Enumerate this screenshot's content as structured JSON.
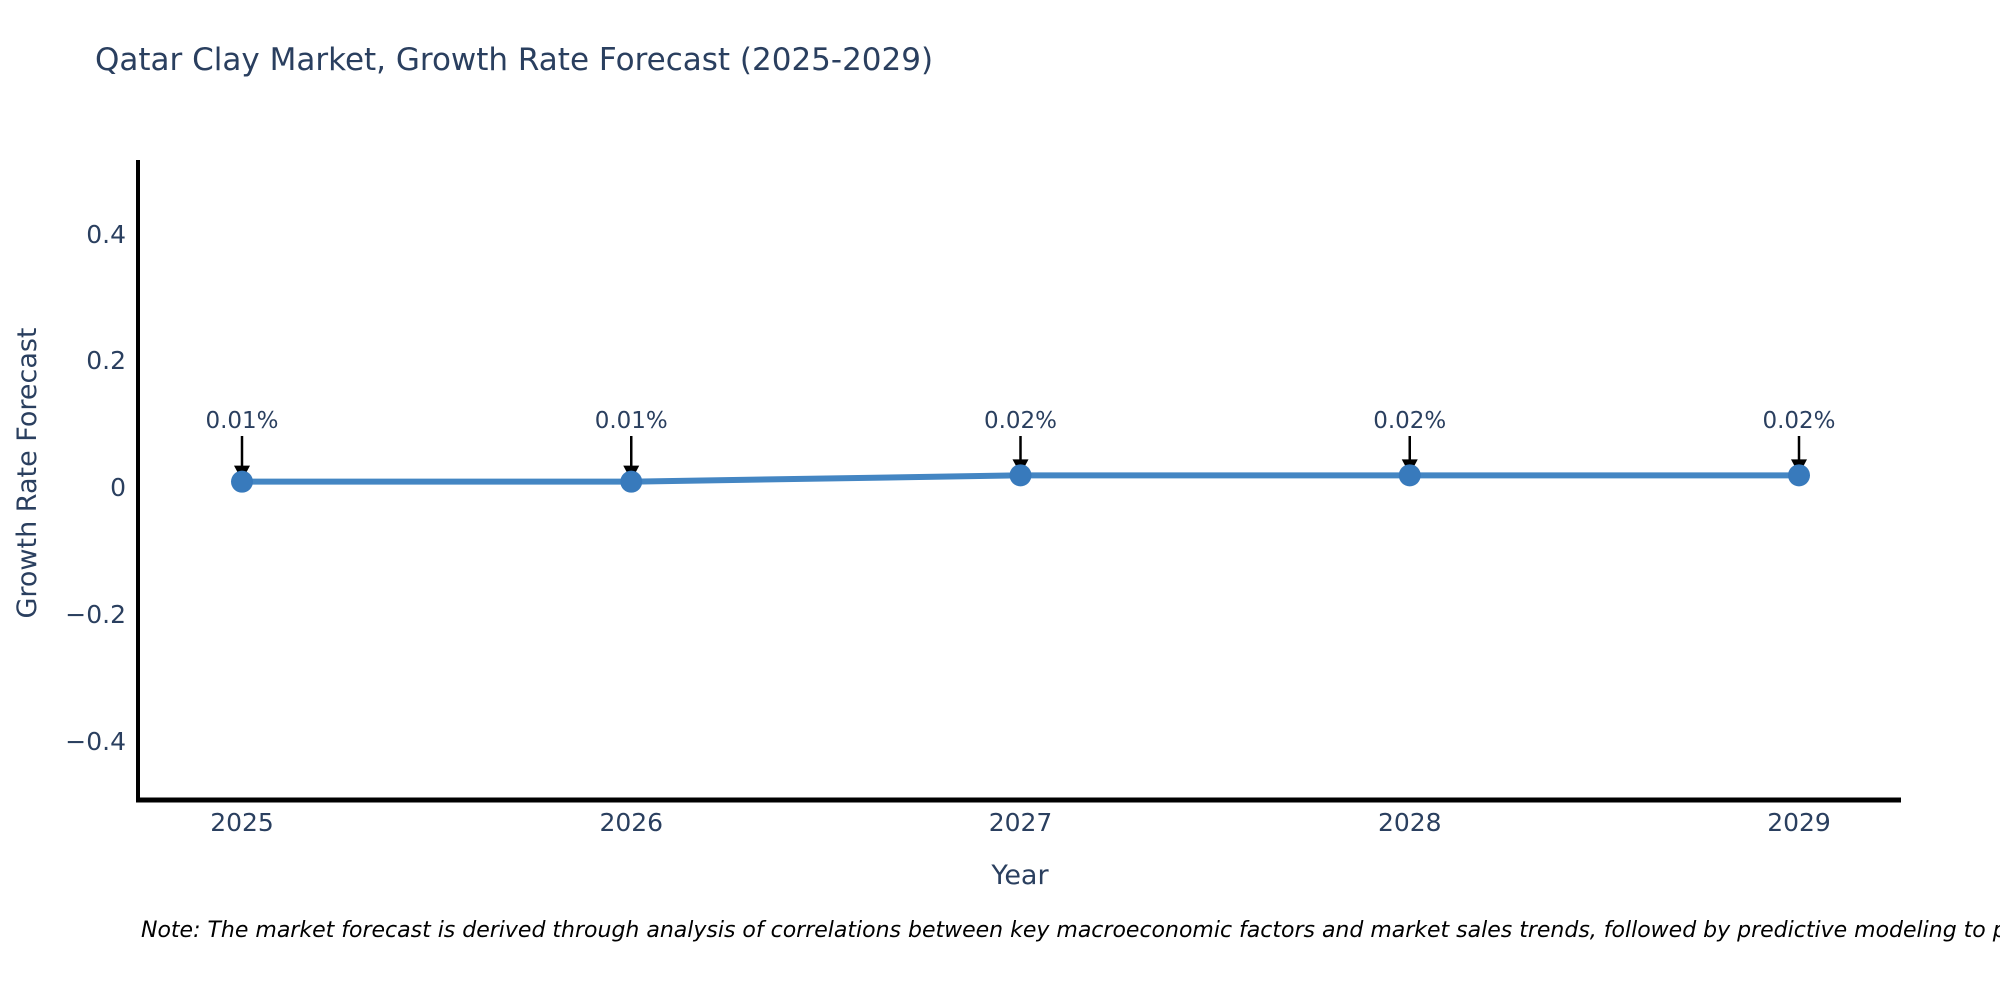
{
  "chart_data": {
    "type": "line",
    "title": "Qatar Clay Market, Growth Rate Forecast (2025-2029)",
    "xlabel": "Year",
    "ylabel": "Growth Rate Forecast",
    "x": [
      2025,
      2026,
      2027,
      2028,
      2029
    ],
    "series": [
      {
        "name": "Growth Rate Forecast",
        "values": [
          0.01,
          0.01,
          0.02,
          0.02,
          0.02
        ]
      }
    ],
    "point_labels": [
      "0.01%",
      "0.01%",
      "0.02%",
      "0.02%",
      "0.02%"
    ],
    "ytick_values": [
      0.4,
      0.2,
      0,
      -0.2,
      -0.4
    ],
    "ytick_labels": [
      "0.4",
      "0.2",
      "0",
      "−0.2",
      "−0.4"
    ],
    "ylim": [
      -0.49,
      0.52
    ],
    "grid": false,
    "legend_position": "none",
    "line_color": "#4486c3",
    "marker_color": "#387abc",
    "axis_color": "#000000",
    "annotation_arrow_color": "#000000",
    "text_color": "#2a3f5f",
    "note": "Note: The market forecast is derived through analysis of correlations between key macroeconomic factors and market sales trends, followed by predictive modeling to project future sales"
  }
}
